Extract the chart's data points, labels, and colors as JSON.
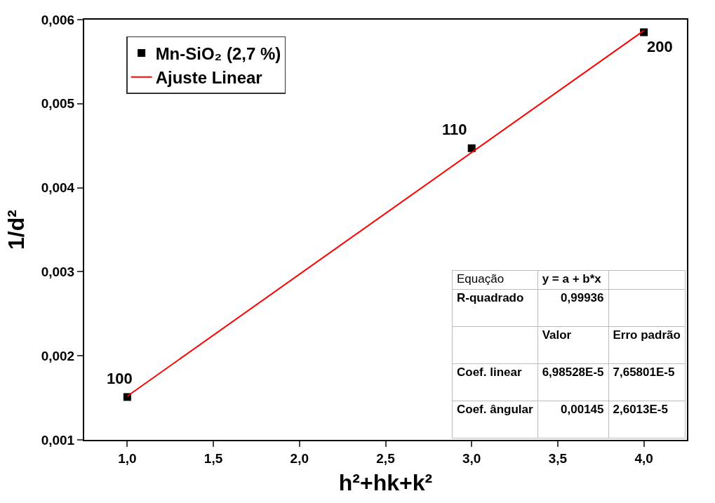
{
  "chart_data": {
    "type": "scatter",
    "xlabel": "h²+hk+k²",
    "ylabel": "1/d²",
    "x": [
      1,
      3,
      4
    ],
    "series": [
      {
        "name": "Mn-SiO₂ (2,7 %)",
        "color": "#000000",
        "values": [
          0.00151,
          0.00447,
          0.00585
        ],
        "marker": "square"
      },
      {
        "name": "Ajuste Linear",
        "type": "line",
        "color": "#ff0000",
        "x": [
          1,
          4
        ],
        "values": [
          0.00152,
          0.00587
        ],
        "marker": "none"
      }
    ],
    "annotations": [
      {
        "text": "100",
        "x": 1,
        "y": 0.00151
      },
      {
        "text": "110",
        "x": 3,
        "y": 0.00447
      },
      {
        "text": "200",
        "x": 4,
        "y": 0.00585
      },
      "Equação",
      "y = a + b*x",
      "R-quadrado",
      "0,99936",
      "Valor",
      "Erro padrão",
      "Coef. linear",
      "6,98528E-5",
      "7,65801E-5",
      "Coef. ângular",
      "0,00145",
      "2,6013E-5"
    ],
    "xlim": [
      0.75,
      4.25
    ],
    "xticks": [
      {
        "value": 1,
        "label": "1,0"
      },
      {
        "value": 1.5,
        "label": "1,5"
      },
      {
        "value": 2,
        "label": "2,0"
      },
      {
        "value": 2.5,
        "label": "2,5"
      },
      {
        "value": 3,
        "label": "3,0"
      },
      {
        "value": 3.5,
        "label": "3,5"
      },
      {
        "value": 4,
        "label": "4,0"
      }
    ],
    "ylim": [
      0.001,
      0.006
    ],
    "yticks": [
      {
        "value": 0.001,
        "label": "0,001"
      },
      {
        "value": 0.002,
        "label": "0,002"
      },
      {
        "value": 0.003,
        "label": "0,003"
      },
      {
        "value": 0.004,
        "label": "0,004"
      },
      {
        "value": 0.005,
        "label": "0,005"
      },
      {
        "value": 0.006,
        "label": "0,006"
      }
    ],
    "grid": false,
    "legend": "top left"
  }
}
